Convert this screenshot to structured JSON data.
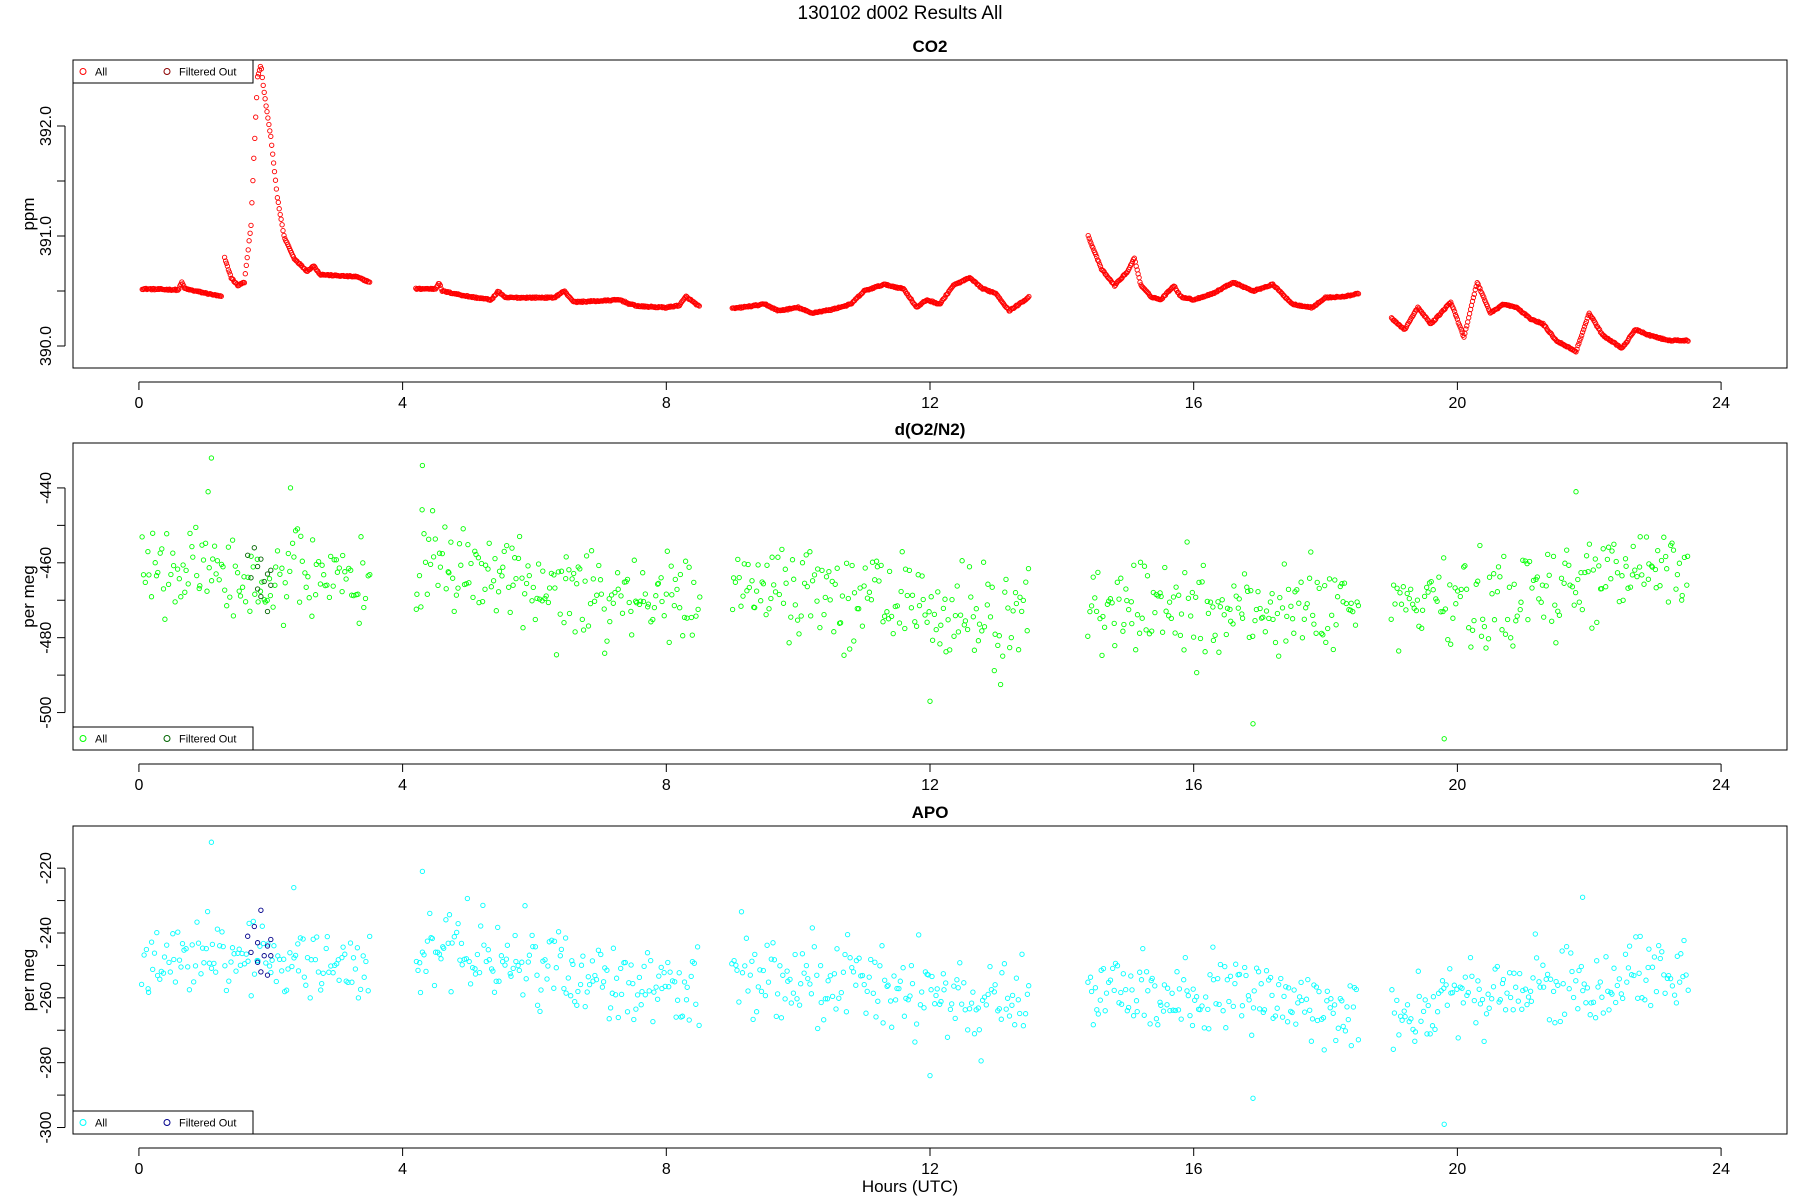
{
  "figure": {
    "title": "130102   d002   Results All",
    "xlabel": "Hours (UTC)"
  },
  "colors": {
    "co2": "#ff0000",
    "co2_filtered": "#8b0000",
    "o2n2": "#00ff00",
    "o2n2_filtered": "#006400",
    "apo": "#00ffff",
    "apo_filtered": "#00008b"
  },
  "chart_data": [
    {
      "type": "scatter",
      "title": "CO2",
      "xlabel": "",
      "ylabel": "ppm",
      "xlim": [
        -1,
        25
      ],
      "ylim": [
        389.8,
        392.6
      ],
      "xticks": [
        0,
        4,
        8,
        12,
        16,
        20,
        24
      ],
      "xtick_labels": [
        "0",
        "4",
        "8",
        "12",
        "16",
        "20",
        "24"
      ],
      "yticks": [
        390.0,
        390.5,
        391.0,
        391.5,
        392.0
      ],
      "ytick_labels": [
        "390.0",
        "",
        "391.0",
        "",
        "392.0"
      ],
      "grid": false,
      "legend": {
        "position": "top-left",
        "entries": [
          "All",
          "Filtered Out"
        ]
      },
      "series": [
        {
          "name": "All",
          "color": "#ff0000",
          "segments": [
            {
              "x": [
                0.05,
                0.6,
                0.65,
                0.7,
                1.25
              ],
              "y": [
                390.52,
                390.51,
                390.58,
                390.52,
                390.45
              ]
            },
            {
              "x": [
                1.3,
                1.4,
                1.5,
                1.6,
                1.7,
                1.75,
                1.8,
                1.85,
                1.9,
                2.0,
                2.1,
                2.2,
                2.35,
                2.55,
                2.65,
                2.75,
                3.0,
                3.3,
                3.5
              ],
              "y": [
                390.8,
                390.62,
                390.55,
                390.58,
                391.1,
                391.8,
                392.45,
                392.55,
                392.3,
                391.9,
                391.35,
                391.0,
                390.8,
                390.68,
                390.73,
                390.65,
                390.64,
                390.63,
                390.58
              ]
            },
            {
              "x": [
                4.2,
                4.5,
                4.55,
                4.6,
                5.0,
                5.35,
                5.45,
                5.55,
                5.8,
                6.3,
                6.45,
                6.6,
                7.0,
                7.3,
                7.45,
                7.6,
                8.0,
                8.2,
                8.3,
                8.5
              ],
              "y": [
                390.52,
                390.52,
                390.58,
                390.5,
                390.45,
                390.42,
                390.5,
                390.44,
                390.44,
                390.44,
                390.5,
                390.4,
                390.41,
                390.42,
                390.38,
                390.36,
                390.35,
                390.37,
                390.45,
                390.36
              ]
            },
            {
              "x": [
                9.0,
                9.5,
                9.7,
                10.0,
                10.2,
                10.5,
                10.8,
                11.0,
                11.3,
                11.6,
                11.8,
                11.95,
                12.15,
                12.35,
                12.6,
                12.8,
                13.0,
                13.2,
                13.4,
                13.5
              ],
              "y": [
                390.34,
                390.38,
                390.32,
                390.35,
                390.3,
                390.33,
                390.38,
                390.5,
                390.56,
                390.52,
                390.35,
                390.42,
                390.38,
                390.55,
                390.62,
                390.52,
                390.48,
                390.32,
                390.4,
                390.45
              ]
            },
            {
              "x": [
                14.4,
                14.6,
                14.8,
                15.0,
                15.1,
                15.2,
                15.35,
                15.5,
                15.7,
                15.8,
                16.0,
                16.3,
                16.6,
                16.9,
                17.2,
                17.5,
                17.8,
                18.0,
                18.3,
                18.5
              ],
              "y": [
                391.0,
                390.7,
                390.55,
                390.68,
                390.8,
                390.55,
                390.45,
                390.42,
                390.55,
                390.45,
                390.42,
                390.48,
                390.58,
                390.5,
                390.56,
                390.38,
                390.35,
                390.44,
                390.45,
                390.48
              ]
            },
            {
              "x": [
                19.0,
                19.2,
                19.4,
                19.6,
                19.9,
                20.1,
                20.3,
                20.5,
                20.7,
                20.9,
                21.1,
                21.3,
                21.5,
                21.8,
                22.0,
                22.2,
                22.5,
                22.7,
                22.9,
                23.2,
                23.5
              ],
              "y": [
                390.25,
                390.15,
                390.35,
                390.2,
                390.4,
                390.08,
                390.58,
                390.3,
                390.38,
                390.35,
                390.25,
                390.2,
                390.05,
                389.95,
                390.3,
                390.1,
                389.98,
                390.15,
                390.1,
                390.05,
                390.05
              ]
            }
          ]
        },
        {
          "name": "Filtered Out",
          "color": "#8b0000",
          "segments": []
        }
      ]
    },
    {
      "type": "scatter",
      "title": "d(O2/N2)",
      "xlabel": "",
      "ylabel": "per meg",
      "xlim": [
        -1,
        25
      ],
      "ylim": [
        -510,
        -428
      ],
      "xticks": [
        0,
        4,
        8,
        12,
        16,
        20,
        24
      ],
      "xtick_labels": [
        "0",
        "4",
        "8",
        "12",
        "16",
        "20",
        "24"
      ],
      "yticks": [
        -500,
        -490,
        -480,
        -470,
        -460,
        -450,
        -440
      ],
      "ytick_labels": [
        "-500",
        "",
        "-480",
        "",
        "-460",
        "",
        "-440"
      ],
      "grid": false,
      "legend": {
        "position": "bottom-left",
        "entries": [
          "All",
          "Filtered Out"
        ]
      },
      "series": [
        {
          "name": "All",
          "color": "#00ff00",
          "segments": [
            {
              "x_start": 0.05,
              "x_end": 3.5,
              "count": 130,
              "mean_start": -462,
              "mean_end": -465,
              "spread": 13
            },
            {
              "x_start": 4.2,
              "x_end": 8.5,
              "count": 170,
              "mean_start": -460,
              "mean_end": -471,
              "spread": 14
            },
            {
              "x_start": 9.0,
              "x_end": 13.5,
              "count": 170,
              "mean_start": -464,
              "mean_end": -476,
              "spread": 15
            },
            {
              "x_start": 14.4,
              "x_end": 18.5,
              "count": 160,
              "mean_start": -472,
              "mean_end": -473,
              "spread": 14
            },
            {
              "x_start": 19.0,
              "x_end": 23.5,
              "count": 170,
              "mean_start": -472,
              "mean_end": -462,
              "spread": 14
            }
          ],
          "outliers": [
            {
              "x": 1.1,
              "y": -432
            },
            {
              "x": 4.3,
              "y": -434
            },
            {
              "x": 1.05,
              "y": -441
            },
            {
              "x": 2.3,
              "y": -440
            },
            {
              "x": 16.9,
              "y": -503
            },
            {
              "x": 19.8,
              "y": -507
            },
            {
              "x": 21.8,
              "y": -441
            },
            {
              "x": 12.0,
              "y": -497
            }
          ]
        },
        {
          "name": "Filtered Out",
          "color": "#006400",
          "x": [
            1.65,
            1.7,
            1.75,
            1.8,
            1.8,
            1.85,
            1.85,
            1.9,
            1.95,
            1.95,
            2.0,
            2.0
          ],
          "y": [
            -458,
            -464,
            -456,
            -467,
            -461,
            -469,
            -459,
            -465,
            -463,
            -473,
            -462,
            -466
          ]
        }
      ]
    },
    {
      "type": "scatter",
      "title": "APO",
      "xlabel": "Hours (UTC)",
      "ylabel": "per meg",
      "xlim": [
        -1,
        25
      ],
      "ylim": [
        -302,
        -207
      ],
      "xticks": [
        0,
        4,
        8,
        12,
        16,
        20,
        24
      ],
      "xtick_labels": [
        "0",
        "4",
        "8",
        "12",
        "16",
        "20",
        "24"
      ],
      "yticks": [
        -300,
        -290,
        -280,
        -270,
        -260,
        -250,
        -240,
        -230,
        -220
      ],
      "ytick_labels": [
        "-300",
        "",
        "-280",
        "",
        "-260",
        "",
        "-240",
        "",
        "-220"
      ],
      "grid": false,
      "legend": {
        "position": "bottom-left",
        "entries": [
          "All",
          "Filtered Out"
        ]
      },
      "series": [
        {
          "name": "All",
          "color": "#00ffff",
          "segments": [
            {
              "x_start": 0.05,
              "x_end": 3.5,
              "count": 130,
              "mean_start": -247,
              "mean_end": -250,
              "spread": 13
            },
            {
              "x_start": 4.2,
              "x_end": 8.5,
              "count": 170,
              "mean_start": -245,
              "mean_end": -257,
              "spread": 14
            },
            {
              "x_start": 9.0,
              "x_end": 13.5,
              "count": 170,
              "mean_start": -251,
              "mean_end": -263,
              "spread": 15
            },
            {
              "x_start": 14.4,
              "x_end": 18.5,
              "count": 160,
              "mean_start": -258,
              "mean_end": -262,
              "spread": 13
            },
            {
              "x_start": 19.0,
              "x_end": 23.5,
              "count": 170,
              "mean_start": -264,
              "mean_end": -251,
              "spread": 13
            }
          ],
          "outliers": [
            {
              "x": 1.1,
              "y": -212
            },
            {
              "x": 4.3,
              "y": -221
            },
            {
              "x": 2.35,
              "y": -226
            },
            {
              "x": 16.9,
              "y": -291
            },
            {
              "x": 19.8,
              "y": -299
            },
            {
              "x": 21.9,
              "y": -229
            },
            {
              "x": 12.0,
              "y": -284
            }
          ]
        },
        {
          "name": "Filtered Out",
          "color": "#00008b",
          "x": [
            1.65,
            1.7,
            1.75,
            1.8,
            1.8,
            1.85,
            1.85,
            1.9,
            1.95,
            1.95,
            2.0,
            2.0
          ],
          "y": [
            -241,
            -246,
            -238,
            -249,
            -243,
            -252,
            -233,
            -247,
            -244,
            -253,
            -242,
            -247
          ]
        }
      ]
    }
  ]
}
